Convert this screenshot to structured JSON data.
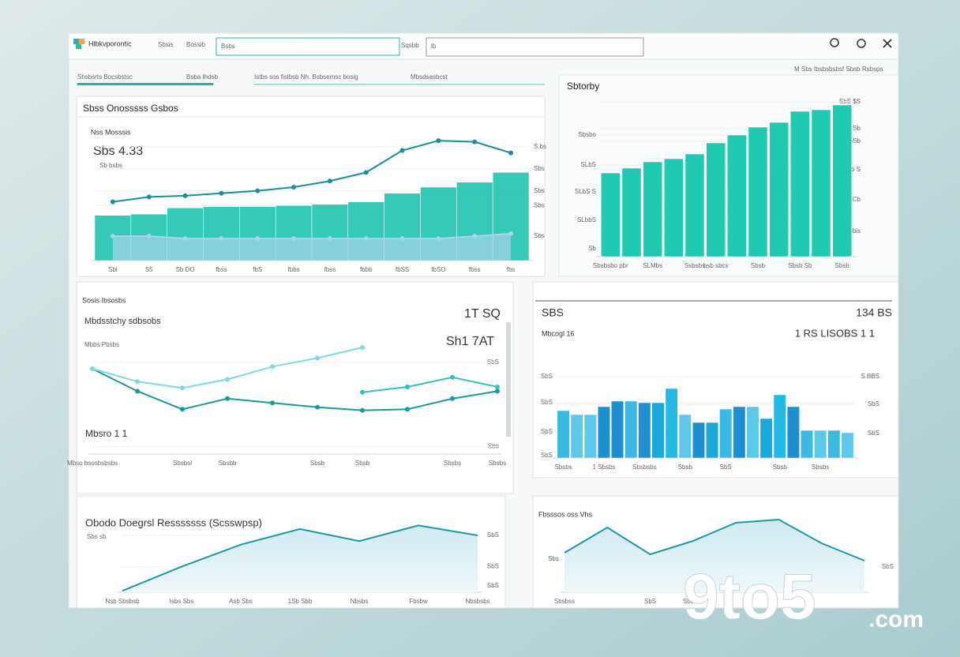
{
  "header": {
    "app_name": "Hlbkvporontic",
    "menu": [
      "Sbsis",
      "Bossib"
    ],
    "search": "Bsbs",
    "search_label": "Sqsbb",
    "filter": "lb"
  },
  "tabs": [
    "Shsbsrts Bocsbstsc",
    "Bsba Ihdsb",
    "Istbs sos fislbsb Nh. Bsbsemsc bosig",
    "Mbsdsasbcst"
  ],
  "breadcrumb": "M Sbs Ibsbsbsbsf Sbsb Rsbsps",
  "panels": [
    {
      "title": "Sbss Onosssss Gsbos",
      "subtitle": "Nss Mosssis",
      "headline": "Sbs 4.33",
      "note": "Sb bsbs",
      "chart": {
        "type": "combo",
        "categories": [
          "Sbl",
          "S5",
          "Sb DO",
          "fbss",
          "fbS",
          "fbbs",
          "fbss",
          "fbbb",
          "fbSS",
          "fbSO",
          "fbss",
          "fbs"
        ],
        "ylim": [
          0,
          100
        ],
        "yticks": [
          {
            "value": 20,
            "label": "Sbs"
          },
          {
            "value": 45,
            "label": "Sbs"
          },
          {
            "value": 57,
            "label": "Sbs"
          },
          {
            "value": 75,
            "label": "Sbs"
          },
          {
            "value": 93,
            "label": "S.bs"
          }
        ],
        "series": [
          {
            "type": "bar",
            "color": "#1fc4ae",
            "values": [
              37,
              38,
              43,
              44,
              44,
              45,
              46,
              48,
              55,
              60,
              64,
              72
            ]
          },
          {
            "type": "area",
            "color": "#a9d3ea",
            "values": [
              20,
              20,
              18,
              18,
              18,
              18,
              18,
              18,
              18,
              18,
              20,
              22
            ]
          },
          {
            "type": "line",
            "color": "#1a8f99",
            "values": [
              48,
              52,
              53,
              55,
              57,
              60,
              65,
              72,
              90,
              98,
              97,
              88
            ]
          }
        ]
      }
    },
    {
      "title": "Sbtorby",
      "chart": {
        "type": "bar",
        "categories": [
          "Sbsbsbo pbr",
          null,
          "SLMbs",
          null,
          "Ssbsbs",
          "bsb sbcs",
          null,
          "Sbsb",
          null,
          "Sbsb Sb",
          null,
          "Sbsb"
        ],
        "ylim": [
          0,
          100
        ],
        "yticks": [
          {
            "value": 5,
            "label": "Sb"
          },
          {
            "value": 23,
            "label": "SLbbS"
          },
          {
            "value": 41,
            "label": "SLbS S"
          },
          {
            "value": 58,
            "label": "SLbS"
          },
          {
            "value": 77,
            "label": "Sbsbo"
          }
        ],
        "y2ticks": [
          {
            "value": 16,
            "label": "Sbsbis"
          },
          {
            "value": 36,
            "label": "S Cb"
          },
          {
            "value": 55,
            "label": "SbSb S"
          },
          {
            "value": 73,
            "label": "SbSb"
          },
          {
            "value": 81,
            "label": "SbsS Sb"
          },
          {
            "value": 98,
            "label": "SbS $S"
          }
        ],
        "series": [
          {
            "color": "#1fc9b2",
            "values": [
              53,
              56,
              60,
              62,
              65,
              72,
              77,
              82,
              85,
              92,
              93,
              96
            ]
          }
        ]
      }
    },
    {
      "title": "Sosis Ibsosbs",
      "subtitle": "Mbdsstchy sdbsobs",
      "note2": "Mbbs Pbsbs",
      "kpi": [
        "1T SQ",
        "Sh1 7AT"
      ],
      "note": "Mbsro 1 1",
      "chart": {
        "type": "line",
        "categories": [
          "Mbso bsosbsbsbs",
          null,
          "Sbsbsl",
          "Sbsbb",
          null,
          "Sbsb",
          "Sbsb",
          null,
          "Sbsbs",
          "Sbsbs"
        ],
        "ylim": [
          0,
          100
        ],
        "yticks": [
          {
            "value": 7,
            "label": "Sbo"
          },
          {
            "value": 86,
            "label": "SbS"
          }
        ],
        "series": [
          {
            "color": "#1a9a96",
            "values": [
              80,
              59,
              42,
              52,
              48,
              44,
              41,
              42,
              52,
              59
            ]
          },
          {
            "color": "#7fd9e0",
            "values": [
              80,
              68,
              62,
              70,
              82,
              90,
              100,
              null,
              null,
              null
            ]
          },
          {
            "color": "#35bfc0",
            "values": [
              null,
              null,
              null,
              null,
              null,
              null,
              58,
              63,
              72,
              63
            ]
          }
        ]
      }
    },
    {
      "title": "SBS",
      "value": "134 BS",
      "subtitle": "Mbcogl 16",
      "detail": "1 RS LISOBS 1 1",
      "chart": {
        "type": "bar",
        "categories": [
          "Sbsbs",
          null,
          null,
          "1 Sbsbs",
          null,
          null,
          "Sbsbsbs",
          null,
          null,
          "Sbsb",
          null,
          null,
          "SbS",
          null,
          null,
          null,
          "Sbsb",
          null,
          null,
          "Sbsbs",
          null,
          null
        ],
        "ylim": [
          0,
          100
        ],
        "yticks": [
          {
            "value": 3,
            "label": "SbS"
          },
          {
            "value": 33,
            "label": "SbS"
          },
          {
            "value": 70,
            "label": "SbS"
          },
          {
            "value": 103,
            "label": "SbS"
          }
        ],
        "y2ticks": [
          {
            "value": 31,
            "label": "SbS"
          },
          {
            "value": 68,
            "label": "SbS"
          },
          {
            "value": 103,
            "label": "S.BBS"
          }
        ],
        "series": [
          {
            "colors": [
              "#3cb9e3",
              "#5fc8ea",
              "#5fc8ea",
              "#1e8fd0",
              "#1e8fd0",
              "#3cb9e3",
              "#1e8fd0",
              "#1aa8d8",
              "#24b8e4",
              "#5fc8ea",
              "#1e8fd0",
              "#1aa8d8",
              "#3cb9e3",
              "#1e8fd0",
              "#5fc8ea",
              "#1aa8d8",
              "#24b8e4",
              "#1e8fd0",
              "#3cb9e3",
              "#5fc8ea",
              "#3cb9e3",
              "#5fc8ea"
            ],
            "values": [
              60,
              55,
              55,
              65,
              72,
              72,
              70,
              70,
              88,
              55,
              45,
              45,
              62,
              65,
              65,
              50,
              80,
              65,
              35,
              35,
              35,
              32
            ]
          }
        ]
      }
    },
    {
      "title": "Obodo Doegrsl Resssssss (Scsswpsp)",
      "note": "Sbs sb",
      "chart": {
        "type": "area",
        "categories": [
          "Nsb Sbsbsb",
          "Isbs Sbs",
          "Asb Sbs",
          "1Sb Sbb",
          "Nbsbs",
          "Fbsbw",
          "Nbsbsbs"
        ],
        "ylim": [
          0,
          100
        ],
        "yticks": [
          {
            "value": 9,
            "label": "SbS"
          },
          {
            "value": 36,
            "label": "SbS"
          },
          {
            "value": 80,
            "label": "SbS"
          }
        ],
        "series": [
          {
            "color": "#1a9a9e",
            "values": [
              2,
              36,
              67,
              89,
              72,
              94,
              80
            ]
          }
        ]
      }
    },
    {
      "title": "Fbsssos oss Vhs",
      "chart": {
        "type": "area",
        "categories": [
          "Sbsbss",
          null,
          "SbS",
          "Sbs bS",
          null,
          null,
          null,
          null
        ],
        "ylim": [
          0,
          100
        ],
        "yticks": [
          {
            "value": 42,
            "label": "Sbs"
          }
        ],
        "y2ticks": [
          {
            "value": 32,
            "label": "SbS"
          }
        ],
        "series": [
          {
            "color": "#1a9aa4",
            "values": [
              50,
              82,
              48,
              65,
              88,
              92,
              62,
              40
            ]
          }
        ]
      }
    }
  ],
  "watermark": {
    "brand": "9to5",
    "suffix": ".com"
  }
}
